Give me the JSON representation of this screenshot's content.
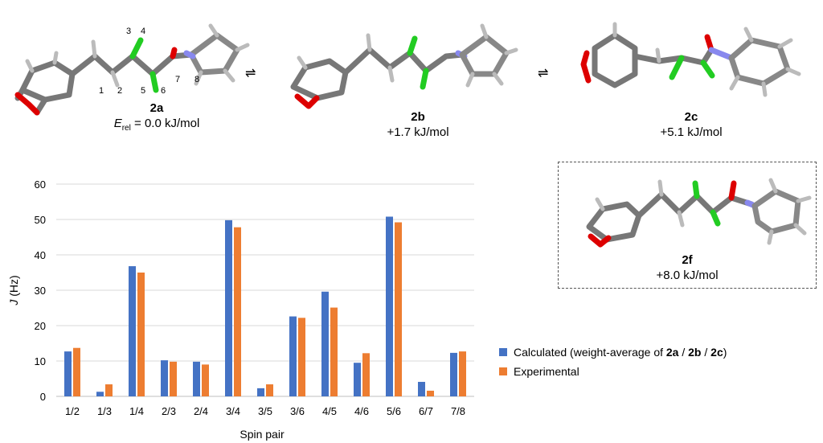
{
  "conformers": [
    {
      "name": "2a",
      "energy_label": "E",
      "energy_sub": "rel",
      "energy_value": " = 0.0 kJ/mol"
    },
    {
      "name": "2b",
      "energy_value": "+1.7 kJ/mol"
    },
    {
      "name": "2c",
      "energy_value": "+5.1 kJ/mol"
    },
    {
      "name": "2f",
      "energy_value": "+8.0 kJ/mol"
    }
  ],
  "atom_numbers": [
    "1",
    "2",
    "3",
    "4",
    "5",
    "6",
    "7",
    "8"
  ],
  "equilibrium_symbol": "⇌",
  "legend": {
    "calculated_prefix": "Calculated (weight-average of ",
    "calc_a": "2a",
    "slash1": " / ",
    "calc_b": "2b",
    "slash2": " / ",
    "calc_c": "2c",
    "calculated_suffix": ")",
    "experimental": "Experimental"
  },
  "colors": {
    "calculated": "#4472c4",
    "experimental": "#ed7d31",
    "grid": "#d9d9d9"
  },
  "chart_data": {
    "type": "bar",
    "title": "",
    "xlabel": "Spin pair",
    "ylabel": "J (Hz)",
    "ylim": [
      0,
      60
    ],
    "yticks": [
      0,
      10,
      20,
      30,
      40,
      50,
      60
    ],
    "categories": [
      "1/2",
      "1/3",
      "1/4",
      "2/3",
      "2/4",
      "3/4",
      "3/5",
      "3/6",
      "4/5",
      "4/6",
      "5/6",
      "6/7",
      "7/8"
    ],
    "series": [
      {
        "name": "Calculated",
        "values": [
          12.7,
          1.3,
          36.8,
          10.2,
          9.8,
          49.8,
          2.3,
          22.6,
          29.6,
          9.5,
          50.8,
          4.1,
          12.3
        ]
      },
      {
        "name": "Experimental",
        "values": [
          13.7,
          3.4,
          35.0,
          9.8,
          9.0,
          47.8,
          3.4,
          22.2,
          25.1,
          12.2,
          49.2,
          1.6,
          12.7
        ]
      }
    ]
  }
}
